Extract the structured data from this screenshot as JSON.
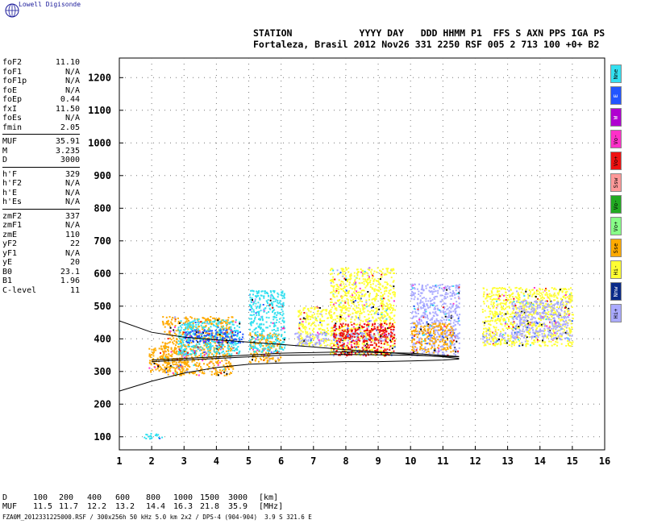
{
  "app": {
    "logo_text": "Lowell Digisonde"
  },
  "header": {
    "line1": "STATION            YYYY DAY   DDD HHMM P1  FFS S AXN PPS IGA PS",
    "line2": "Fortaleza, Brasil 2012 Nov26 331 2250 RSF 005 2 713 100 +0+ B2"
  },
  "params": {
    "group1": [
      {
        "label": "foF2",
        "value": "11.10"
      },
      {
        "label": "foF1",
        "value": "N/A"
      },
      {
        "label": "foF1p",
        "value": "N/A"
      },
      {
        "label": "foE",
        "value": "N/A"
      },
      {
        "label": "foEp",
        "value": "0.44"
      },
      {
        "label": "fxI",
        "value": "11.50"
      },
      {
        "label": "foEs",
        "value": "N/A"
      },
      {
        "label": "fmin",
        "value": "2.05"
      }
    ],
    "group2": [
      {
        "label": "MUF",
        "value": "35.91"
      },
      {
        "label": "M",
        "value": "3.235"
      },
      {
        "label": "D",
        "value": "3000"
      }
    ],
    "group3": [
      {
        "label": "h'F",
        "value": "329"
      },
      {
        "label": "h'F2",
        "value": "N/A"
      },
      {
        "label": "h'E",
        "value": "N/A"
      },
      {
        "label": "h'Es",
        "value": "N/A"
      }
    ],
    "group4": [
      {
        "label": "zmF2",
        "value": "337"
      },
      {
        "label": "zmF1",
        "value": "N/A"
      },
      {
        "label": "zmE",
        "value": "110"
      },
      {
        "label": "yF2",
        "value": "22"
      },
      {
        "label": "yF1",
        "value": "N/A"
      },
      {
        "label": "yE",
        "value": "20"
      },
      {
        "label": "B0",
        "value": "23.1"
      },
      {
        "label": "B1",
        "value": "1.96"
      },
      {
        "label": "C-level",
        "value": "11"
      }
    ]
  },
  "legend": [
    {
      "label": "Nne",
      "color": "#33e0f0"
    },
    {
      "label": "E",
      "color": "#2255ff"
    },
    {
      "label": "W",
      "color": "#b000d0"
    },
    {
      "label": "Vo-",
      "color": "#ff30c8"
    },
    {
      "label": "Vo+",
      "color": "#ee1111"
    },
    {
      "label": "Ssw",
      "color": "#ff9999"
    },
    {
      "label": "Vo-",
      "color": "#22aa22"
    },
    {
      "label": "Vo+",
      "color": "#88ff88"
    },
    {
      "label": "Sse",
      "color": "#ffaa00"
    },
    {
      "label": "Hi-",
      "color": "#ffff33"
    },
    {
      "label": "Nnw",
      "color": "#0a2a88"
    },
    {
      "label": "Hi+",
      "color": "#aaaaff"
    }
  ],
  "footer": {
    "d_label": "D",
    "d_values": [
      "100",
      "200",
      "400",
      "600",
      "800",
      "1000",
      "1500",
      "3000"
    ],
    "d_unit": "[km]",
    "muf_label": "MUF",
    "muf_values": [
      "11.5",
      "11.7",
      "12.2",
      "13.2",
      "14.4",
      "16.3",
      "21.8",
      "35.9"
    ],
    "muf_unit": "[MHz]",
    "file_line": "FZA0M_2012331225000.RSF / 300x256h 50 kHz 5.0 km 2x2 / DPS-4 (904-904)  3.9 S 321.6 E"
  },
  "chart_data": {
    "type": "scatter",
    "x_ticks": [
      1,
      2,
      3,
      4,
      5,
      6,
      7,
      8,
      9,
      10,
      11,
      12,
      13,
      14,
      15,
      16
    ],
    "y_ticks": [
      100,
      200,
      300,
      400,
      500,
      600,
      700,
      800,
      900,
      1000,
      1100,
      1200
    ],
    "xlim": [
      1,
      16
    ],
    "ylim": [
      60,
      1260
    ],
    "grid": true,
    "echo_clusters": [
      {
        "x": [
          1.7,
          2.3
        ],
        "y": [
          95,
          112
        ],
        "color": "#33e0f0"
      },
      {
        "x": [
          1.9,
          3.1
        ],
        "y": [
          300,
          380
        ],
        "color": "#ffaa00"
      },
      {
        "x": [
          2.3,
          4.5
        ],
        "y": [
          290,
          470
        ],
        "color": "#ffaa00"
      },
      {
        "x": [
          2.8,
          4.7
        ],
        "y": [
          350,
          460
        ],
        "color": "#33e0f0"
      },
      {
        "x": [
          3.0,
          4.8
        ],
        "y": [
          390,
          430
        ],
        "color": "#2255ff"
      },
      {
        "x": [
          5.0,
          6.0
        ],
        "y": [
          330,
          420
        ],
        "color": "#ffaa00"
      },
      {
        "x": [
          5.0,
          6.1
        ],
        "y": [
          360,
          550
        ],
        "color": "#33e0f0"
      },
      {
        "x": [
          6.5,
          7.5
        ],
        "y": [
          380,
          500
        ],
        "color": "#ffff33"
      },
      {
        "x": [
          6.4,
          7.4
        ],
        "y": [
          380,
          420
        ],
        "color": "#aaaaff"
      },
      {
        "x": [
          7.5,
          9.5
        ],
        "y": [
          350,
          620
        ],
        "color": "#ffff33"
      },
      {
        "x": [
          7.6,
          9.5
        ],
        "y": [
          395,
          420
        ],
        "color": "#aaaaff"
      },
      {
        "x": [
          7.6,
          9.5
        ],
        "y": [
          350,
          450
        ],
        "color": "#ee1111"
      },
      {
        "x": [
          10.0,
          11.5
        ],
        "y": [
          350,
          570
        ],
        "color": "#aaaaff"
      },
      {
        "x": [
          10.0,
          11.3
        ],
        "y": [
          360,
          450
        ],
        "color": "#ffaa00"
      },
      {
        "x": [
          12.2,
          13.0
        ],
        "y": [
          390,
          420
        ],
        "color": "#aaaaff"
      },
      {
        "x": [
          12.2,
          15.0
        ],
        "y": [
          380,
          560
        ],
        "color": "#ffff33"
      },
      {
        "x": [
          13.1,
          14.9
        ],
        "y": [
          400,
          520
        ],
        "color": "#aaaaff"
      }
    ],
    "trace_curves": [
      [
        [
          1.0,
          455
        ],
        [
          2.0,
          420
        ],
        [
          3.0,
          405
        ],
        [
          4.0,
          397
        ],
        [
          5.0,
          390
        ],
        [
          6.0,
          383
        ],
        [
          7.0,
          375
        ],
        [
          8.0,
          367
        ],
        [
          9.0,
          360
        ],
        [
          10.0,
          352
        ],
        [
          11.0,
          345
        ],
        [
          11.5,
          340
        ]
      ],
      [
        [
          1.0,
          240
        ],
        [
          2.0,
          270
        ],
        [
          3.0,
          295
        ],
        [
          4.0,
          312
        ],
        [
          5.0,
          322
        ],
        [
          6.0,
          326
        ],
        [
          7.0,
          328
        ],
        [
          8.0,
          330
        ],
        [
          9.0,
          330
        ],
        [
          10.0,
          332
        ],
        [
          11.0,
          335
        ],
        [
          11.5,
          338
        ]
      ],
      [
        [
          2.0,
          330
        ],
        [
          4.0,
          340
        ],
        [
          6.0,
          350
        ],
        [
          8.0,
          352
        ],
        [
          10.0,
          350
        ],
        [
          11.5,
          345
        ]
      ],
      [
        [
          2.0,
          335
        ],
        [
          4.0,
          345
        ],
        [
          6.0,
          356
        ],
        [
          8.0,
          360
        ],
        [
          10.0,
          356
        ],
        [
          11.5,
          346
        ]
      ]
    ]
  }
}
